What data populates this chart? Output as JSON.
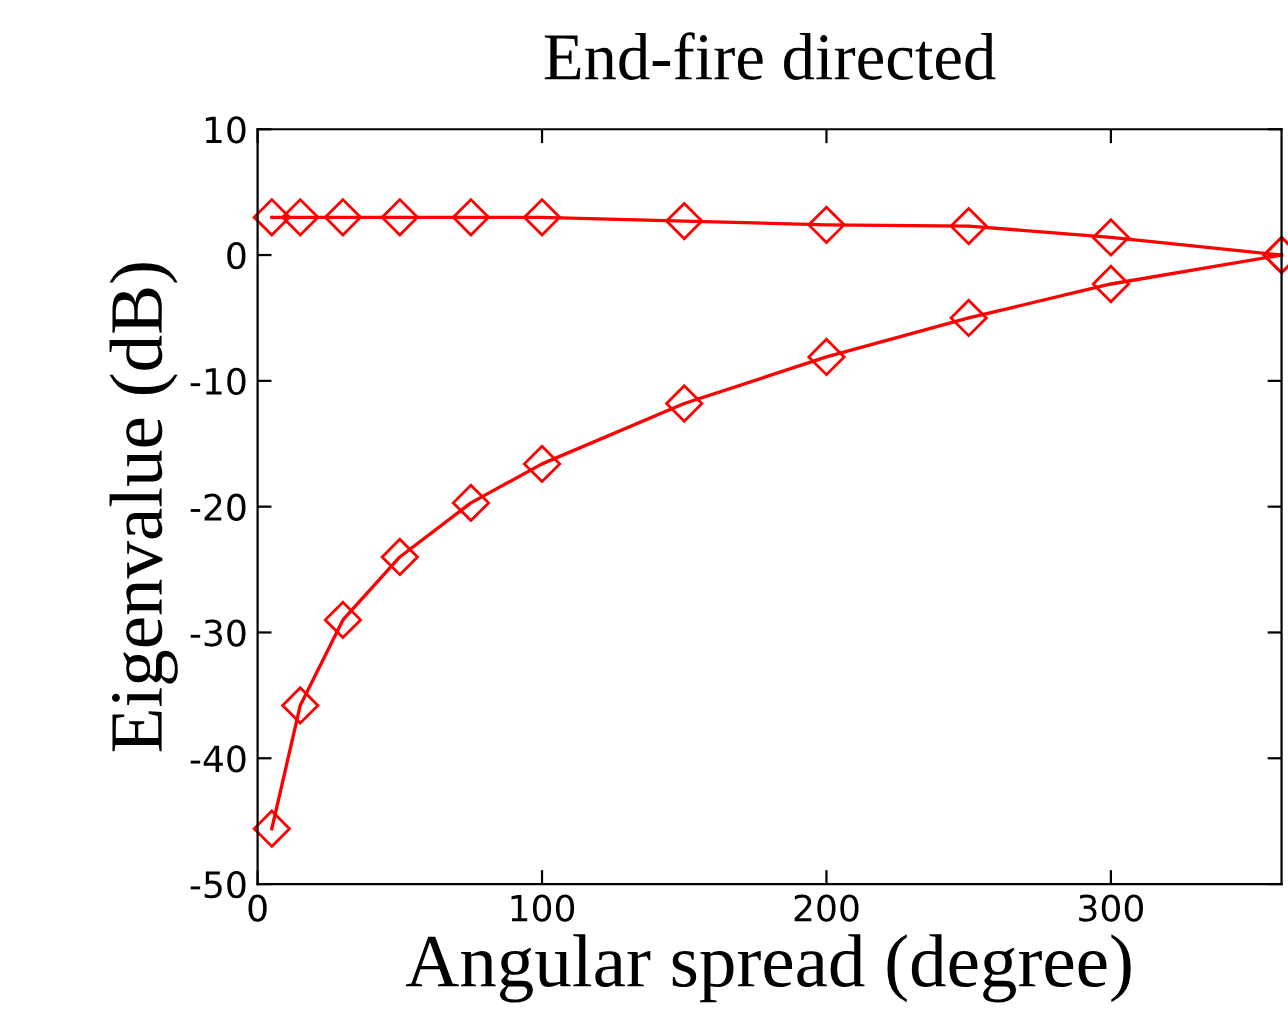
{
  "chart_data": {
    "type": "line",
    "title": "End-fire directed",
    "xlabel": "Angular spread (degree)",
    "ylabel": "Eigenvalue (dB)",
    "x": [
      5,
      15,
      30,
      50,
      75,
      100,
      150,
      200,
      250,
      300,
      360
    ],
    "series": [
      {
        "color": "#ff0000",
        "values": [
          3,
          3,
          3,
          3,
          3,
          3,
          2.7,
          2.4,
          2.3,
          1.4,
          0
        ]
      },
      {
        "color": "#ff0000",
        "values": [
          -45.6,
          -35.8,
          -29.0,
          -24.0,
          -19.7,
          -16.6,
          -11.8,
          -8.1,
          -5.0,
          -2.3,
          0
        ]
      }
    ],
    "xlim": [
      0,
      360
    ],
    "xticks": [
      0,
      100,
      200,
      300
    ],
    "ylim": [
      -50,
      10
    ],
    "yticks": [
      -50,
      -40,
      -30,
      -20,
      -10,
      0,
      10
    ],
    "marker": "diamond",
    "line_style": "solid",
    "grid": false,
    "legend": false
  }
}
